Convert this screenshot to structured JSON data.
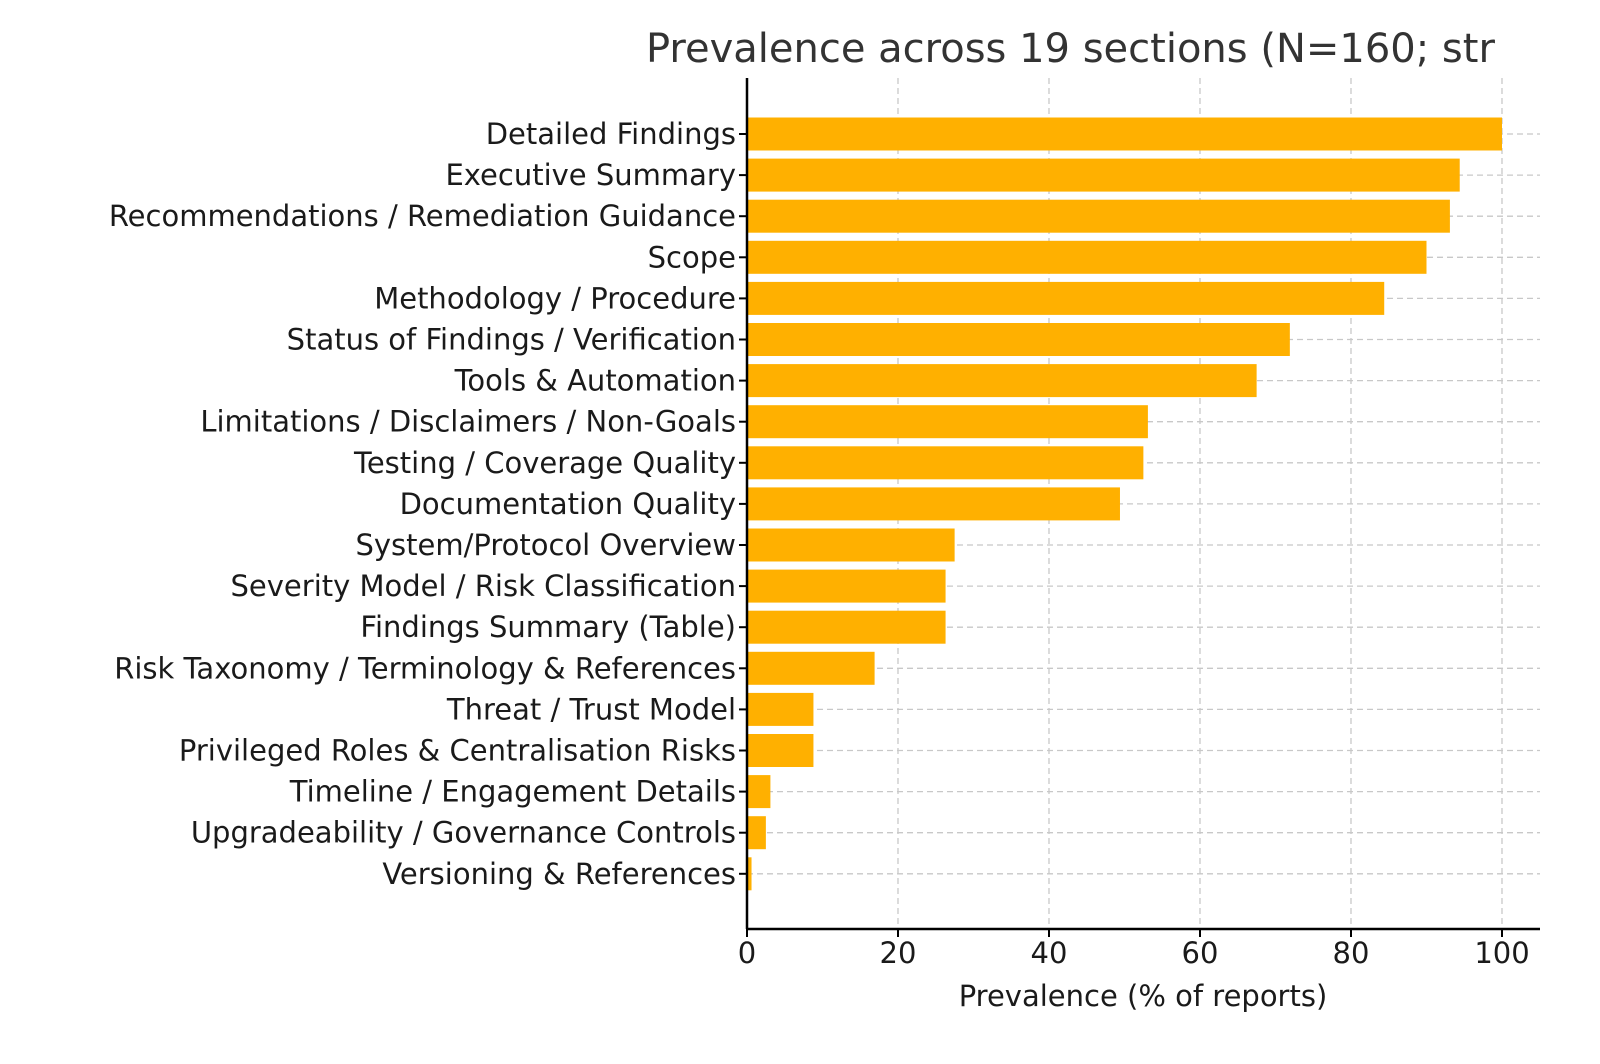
{
  "chart_data": {
    "type": "bar",
    "orientation": "horizontal",
    "title": "Prevalence across 19 sections (N=160; str",
    "xlabel": "Prevalence (% of reports)",
    "ylabel": "",
    "xlim": [
      0,
      105
    ],
    "x_ticks": [
      0,
      20,
      40,
      60,
      80,
      100
    ],
    "grid": true,
    "bar_color": "#FFB000",
    "categories": [
      "Detailed Findings",
      "Executive Summary",
      "Recommendations / Remediation Guidance",
      "Scope",
      "Methodology / Procedure",
      "Status of Findings / Verification",
      "Tools & Automation",
      "Limitations / Disclaimers / Non-Goals",
      "Testing / Coverage Quality",
      "Documentation Quality",
      "System/Protocol Overview",
      "Severity Model / Risk Classification",
      "Findings Summary (Table)",
      "Risk Taxonomy / Terminology & References",
      "Threat / Trust Model",
      "Privileged Roles & Centralisation Risks",
      "Timeline / Engagement Details",
      "Upgradeability / Governance Controls",
      "Versioning & References"
    ],
    "values": [
      100.0,
      94.4,
      93.1,
      90.0,
      84.4,
      71.9,
      67.5,
      53.1,
      52.5,
      49.4,
      27.5,
      26.3,
      26.3,
      16.9,
      8.8,
      8.8,
      3.1,
      2.5,
      0.6
    ]
  }
}
